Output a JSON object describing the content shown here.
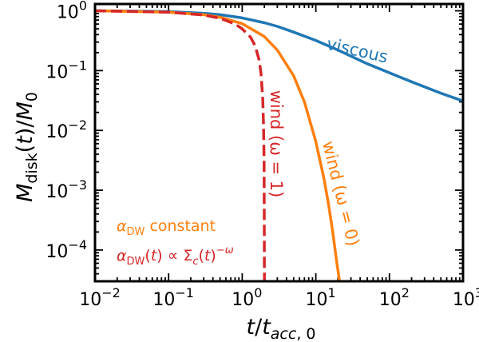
{
  "chart_data": {
    "type": "line",
    "xscale": "log",
    "yscale": "log",
    "xlim": [
      0.01,
      1000
    ],
    "ylim": [
      3e-05,
      1.3
    ],
    "xlabel": "t/t_acc,0",
    "ylabel": "M_disk(t)/M_0",
    "x_ticks": [
      {
        "value": 0.01,
        "base": "10",
        "exp": "−2"
      },
      {
        "value": 0.1,
        "base": "10",
        "exp": "−1"
      },
      {
        "value": 1,
        "base": "10",
        "exp": "0"
      },
      {
        "value": 10,
        "base": "10",
        "exp": "1"
      },
      {
        "value": 100,
        "base": "10",
        "exp": "2"
      },
      {
        "value": 1000,
        "base": "10",
        "exp": "3"
      }
    ],
    "y_ticks": [
      {
        "value": 1,
        "base": "10",
        "exp": "0"
      },
      {
        "value": 0.1,
        "base": "10",
        "exp": "−1"
      },
      {
        "value": 0.01,
        "base": "10",
        "exp": "−2"
      },
      {
        "value": 0.001,
        "base": "10",
        "exp": "−3"
      },
      {
        "value": 0.0001,
        "base": "10",
        "exp": "−4"
      }
    ],
    "series": [
      {
        "name": "viscous",
        "color": "#1f77b4",
        "style": "solid",
        "x": [
          0.01,
          0.03,
          0.1,
          0.3,
          0.5,
          1,
          2,
          3,
          5,
          10,
          20,
          50,
          100,
          200,
          500,
          1000
        ],
        "y": [
          1.0,
          0.99,
          0.97,
          0.91,
          0.86,
          0.76,
          0.63,
          0.55,
          0.44,
          0.32,
          0.22,
          0.13,
          0.092,
          0.065,
          0.042,
          0.031
        ]
      },
      {
        "name": "wind (ω = 0)",
        "color": "#ff7f0e",
        "style": "solid",
        "x": [
          0.01,
          0.1,
          0.3,
          0.5,
          1,
          2,
          3,
          5,
          7,
          10,
          13,
          15,
          17,
          19,
          21
        ],
        "y": [
          1.0,
          0.95,
          0.86,
          0.78,
          0.61,
          0.37,
          0.22,
          0.082,
          0.03,
          0.0065,
          0.0015,
          0.00055,
          0.0002,
          7e-05,
          3e-05
        ]
      },
      {
        "name": "wind (ω = 1)",
        "color": "#d62728",
        "style": "dashed",
        "x": [
          0.01,
          0.1,
          0.3,
          0.5,
          0.8,
          1,
          1.3,
          1.5,
          1.7,
          1.8,
          1.9,
          1.95,
          1.98,
          2.0
        ],
        "y": [
          1.0,
          0.95,
          0.85,
          0.75,
          0.6,
          0.5,
          0.36,
          0.26,
          0.15,
          0.09,
          0.035,
          0.012,
          0.003,
          3e-05
        ]
      }
    ],
    "legend_text": {
      "line1": "α_DW constant",
      "line2": "α_DW(t) ∝ Σ_c(t)^−ω",
      "placement": "lower-left",
      "color1": "#ff7f0e",
      "color2": "#d62728"
    }
  }
}
